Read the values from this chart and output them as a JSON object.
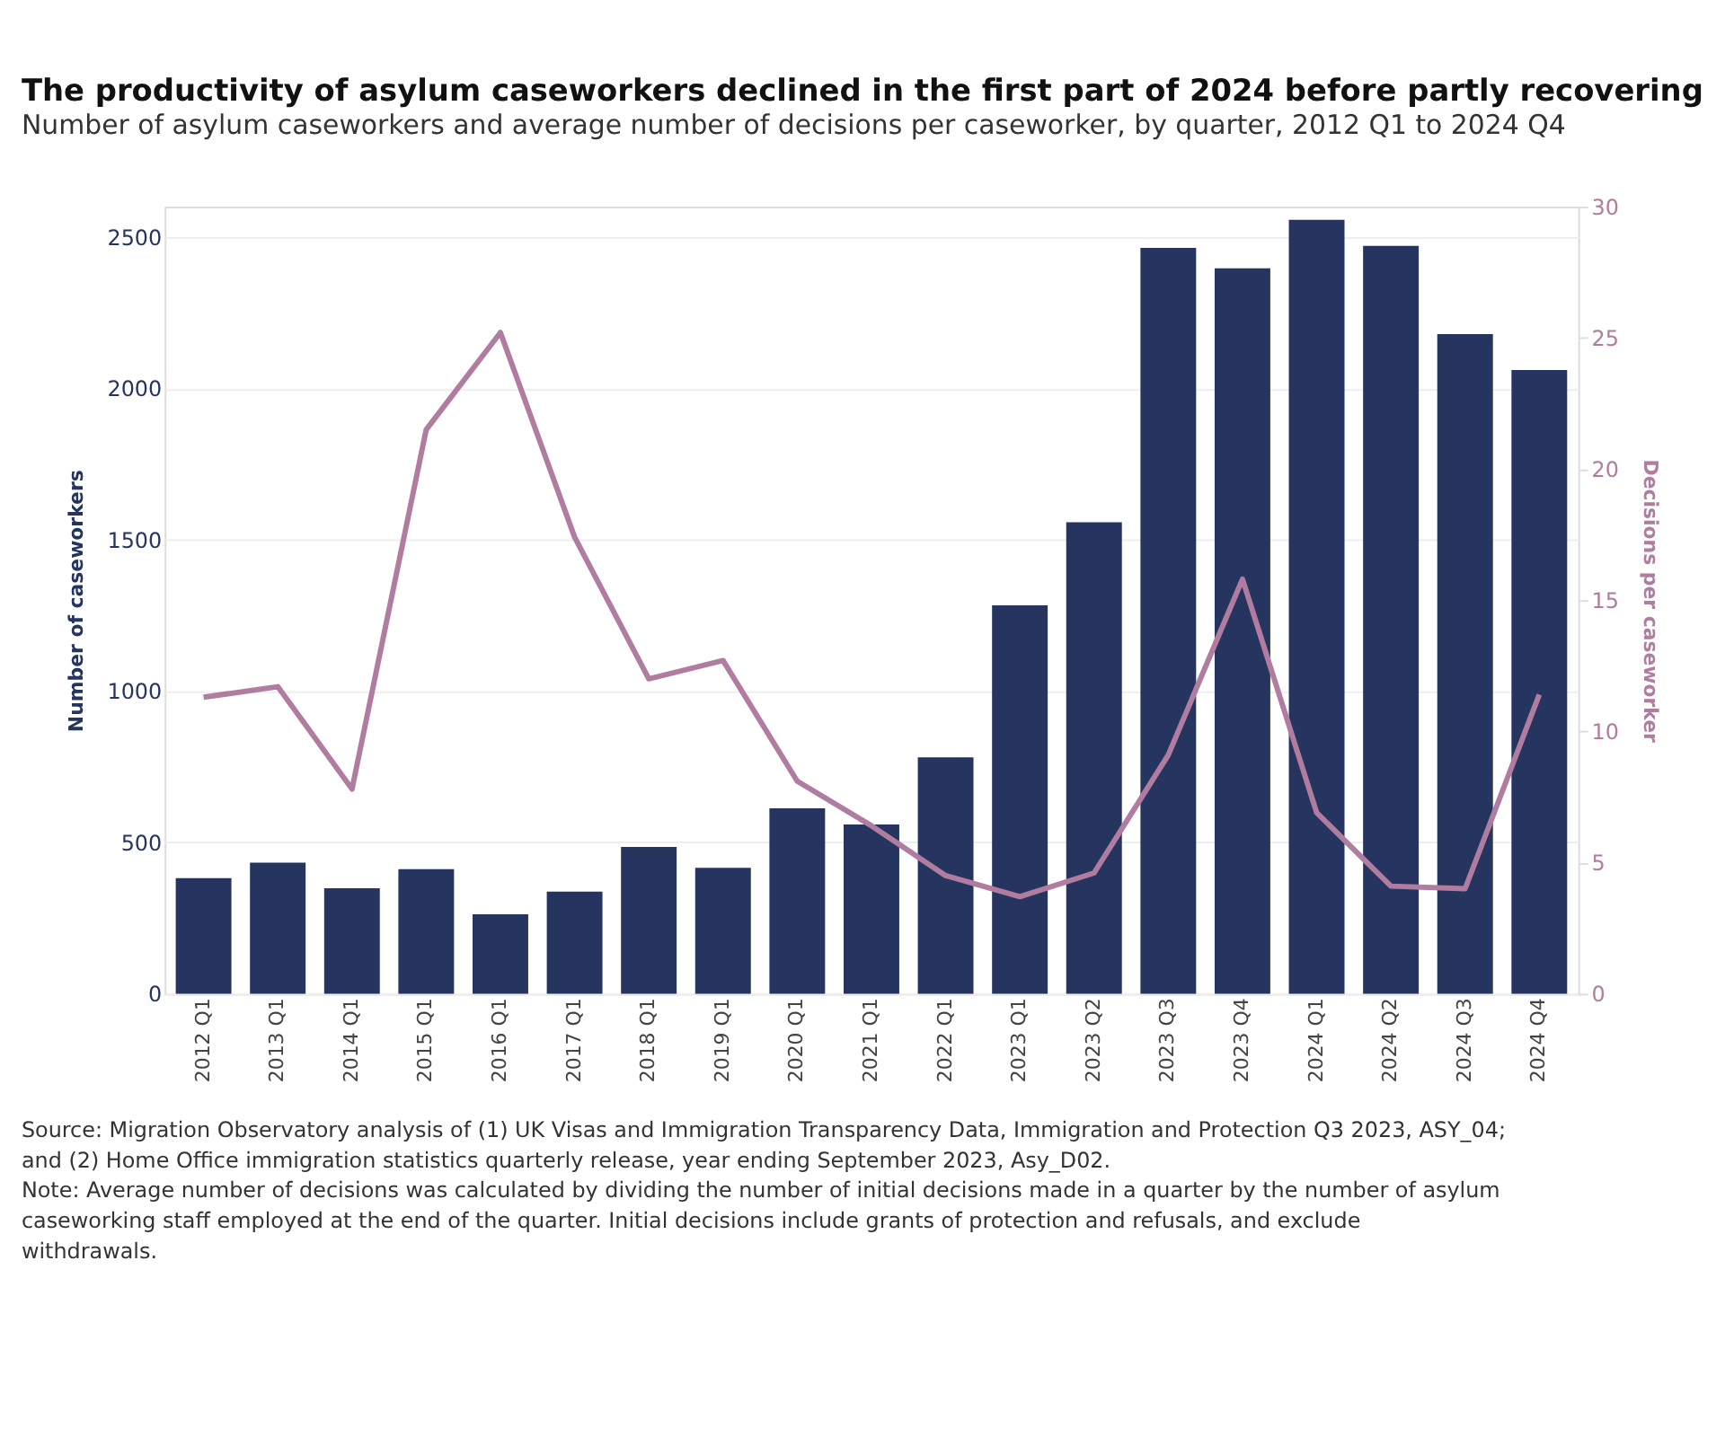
{
  "chart_data": {
    "type": "bar",
    "title": "The productivity of asylum caseworkers declined in the first part of 2024 before partly recovering",
    "subtitle": "Number of asylum caseworkers and average number of decisions per caseworker, by quarter, 2012 Q1 to 2024 Q4",
    "ylabel": "Number of caseworkers",
    "y2label": "Decisions per caseworker",
    "categories": [
      "2012 Q1",
      "2013 Q1",
      "2014 Q1",
      "2015 Q1",
      "2016 Q1",
      "2017 Q1",
      "2018 Q1",
      "2019 Q1",
      "2020 Q1",
      "2021 Q1",
      "2022 Q1",
      "2023 Q1",
      "2023 Q2",
      "2023 Q3",
      "2023 Q4",
      "2024 Q1",
      "2024 Q2",
      "2024 Q3",
      "2024 Q4"
    ],
    "series": [
      {
        "color": "#253560",
        "values": [
          382,
          433,
          348,
          411,
          262,
          337,
          485,
          416,
          612,
          559,
          781,
          1283,
          1557,
          2464,
          2396,
          2556,
          2470,
          2179,
          2060
        ]
      },
      {
        "type": "line",
        "axis": "y2",
        "color": "#b07ca0",
        "values": [
          11.3,
          11.7,
          7.8,
          21.5,
          25.2,
          17.4,
          12.0,
          12.7,
          8.1,
          6.4,
          4.5,
          3.7,
          4.6,
          9.1,
          15.8,
          6.9,
          4.1,
          4.0,
          11.4
        ]
      }
    ],
    "ylim": [
      0,
      2600
    ],
    "yticks": [
      0,
      500,
      1000,
      1500,
      2000,
      2500
    ],
    "y2lim": [
      0,
      30
    ],
    "y2ticks": [
      0,
      5,
      10,
      15,
      20,
      25,
      30
    ],
    "grid": "y",
    "marker": "none",
    "line_style": "solid",
    "annotations": [
      "Source: Migration Observatory analysis of (1) UK Visas and Immigration Transparency Data, Immigration and Protection Q3 2023, ASY_04; and (2) Home Office immigration statistics quarterly release, year ending September 2023, Asy_D02.",
      "Note: Average number of decisions was calculated by dividing the number of initial decisions made in a quarter by the number of asylum caseworking staff employed at the end of the quarter. Initial decisions include grants of protection and refusals, and exclude withdrawals."
    ]
  }
}
